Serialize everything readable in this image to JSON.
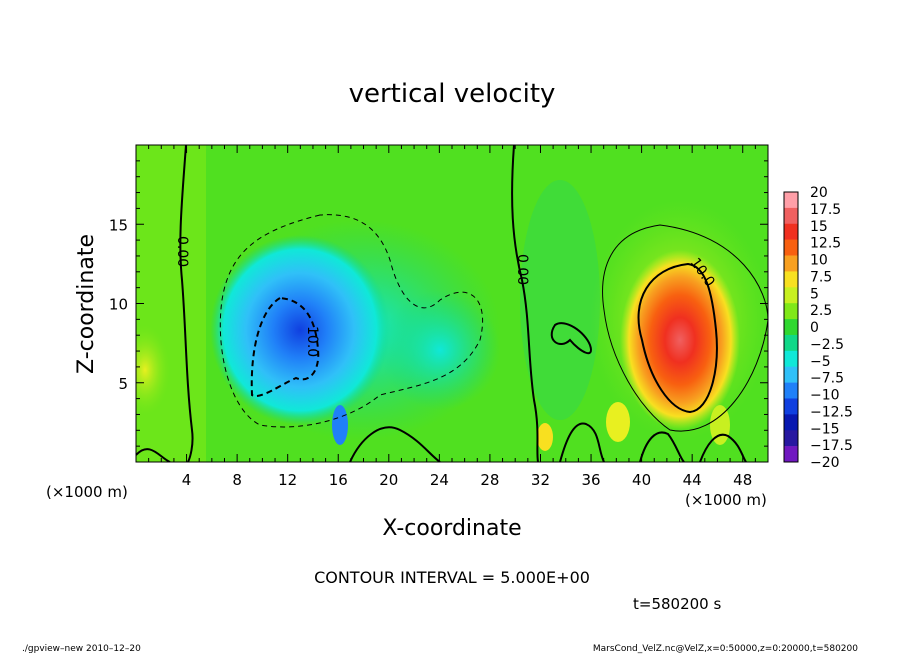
{
  "chart_data": {
    "type": "heatmap",
    "title": "vertical velocity",
    "xlabel": "X-coordinate",
    "ylabel": "Z-coordinate",
    "x_unit": "(×1000 m)",
    "z_unit": "(×1000 m)",
    "xlim": [
      0,
      50
    ],
    "ylim": [
      0,
      20
    ],
    "x_ticks": [
      "4",
      "8",
      "12",
      "16",
      "20",
      "24",
      "28",
      "32",
      "36",
      "40",
      "44",
      "48"
    ],
    "y_ticks": [
      "5",
      "10",
      "15"
    ],
    "contour_interval": "CONTOUR INTERVAL = 5.000E+00",
    "contour_labels": [
      "0.00",
      "10.0",
      "0.00",
      "10.0"
    ],
    "colorbar": {
      "levels": [
        "20",
        "17.5",
        "15",
        "12.5",
        "10",
        "7.5",
        "5",
        "2.5",
        "0",
        "−2.5",
        "−5",
        "−7.5",
        "−10",
        "−12.5",
        "−15",
        "−17.5",
        "−20"
      ],
      "colors": [
        "#ff9fa8",
        "#f06060",
        "#f03020",
        "#f86010",
        "#f8a020",
        "#f8e020",
        "#c8f020",
        "#80e818",
        "#30d830",
        "#10d888",
        "#10e8d8",
        "#30c0f8",
        "#2080f8",
        "#1040e0",
        "#0818b0",
        "#2818a0",
        "#7018c0"
      ]
    },
    "time_label": "t=580200 s"
  },
  "footer": {
    "left": "./gpview–new  2010–12–20",
    "right": "MarsCond_VelZ.nc@VelZ,x=0:50000,z=0:20000,t=580200"
  }
}
